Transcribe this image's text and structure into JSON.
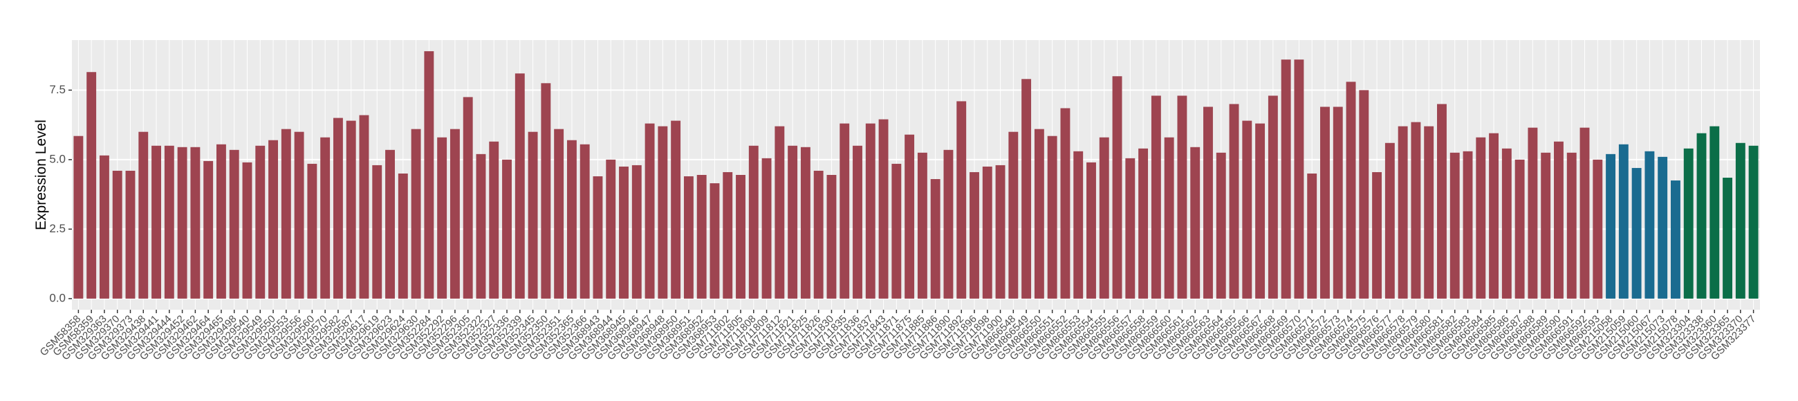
{
  "chart_data": {
    "type": "bar",
    "y_label": "Expression Level",
    "categories": [
      "GSM58358",
      "GSM58359",
      "GSM329363",
      "GSM329370",
      "GSM329373",
      "GSM329438",
      "GSM329441",
      "GSM329444",
      "GSM329452",
      "GSM329462",
      "GSM329464",
      "GSM329465",
      "GSM329498",
      "GSM329540",
      "GSM329549",
      "GSM329550",
      "GSM329553",
      "GSM329556",
      "GSM329560",
      "GSM329570",
      "GSM329582",
      "GSM329587",
      "GSM329617",
      "GSM329619",
      "GSM329623",
      "GSM329624",
      "GSM329630",
      "GSM352284",
      "GSM352292",
      "GSM352296",
      "GSM352305",
      "GSM352322",
      "GSM352327",
      "GSM352336",
      "GSM352339",
      "GSM352345",
      "GSM352350",
      "GSM352351",
      "GSM352365",
      "GSM352366",
      "GSM368943",
      "GSM368944",
      "GSM368945",
      "GSM368946",
      "GSM368947",
      "GSM368948",
      "GSM368950",
      "GSM368951",
      "GSM368952",
      "GSM368953",
      "GSM711802",
      "GSM711805",
      "GSM711808",
      "GSM711809",
      "GSM711812",
      "GSM711821",
      "GSM711825",
      "GSM711826",
      "GSM711830",
      "GSM711835",
      "GSM711836",
      "GSM711837",
      "GSM711843",
      "GSM711871",
      "GSM711875",
      "GSM711885",
      "GSM711886",
      "GSM711890",
      "GSM711892",
      "GSM711896",
      "GSM711898",
      "GSM711900",
      "GSM866548",
      "GSM866549",
      "GSM866550",
      "GSM866551",
      "GSM866552",
      "GSM866553",
      "GSM866554",
      "GSM866555",
      "GSM866556",
      "GSM866557",
      "GSM866558",
      "GSM866559",
      "GSM866560",
      "GSM866561",
      "GSM866562",
      "GSM866563",
      "GSM866564",
      "GSM866565",
      "GSM866566",
      "GSM866567",
      "GSM866568",
      "GSM866569",
      "GSM866570",
      "GSM866571",
      "GSM866572",
      "GSM866573",
      "GSM866574",
      "GSM866575",
      "GSM866576",
      "GSM866577",
      "GSM866578",
      "GSM866579",
      "GSM866580",
      "GSM866581",
      "GSM866582",
      "GSM866583",
      "GSM866584",
      "GSM866585",
      "GSM866586",
      "GSM866587",
      "GSM866588",
      "GSM866589",
      "GSM866590",
      "GSM866591",
      "GSM866592",
      "GSM866593",
      "GSM215058",
      "GSM215059",
      "GSM215060",
      "GSM215067",
      "GSM215073",
      "GSM215078",
      "GSM323304",
      "GSM323338",
      "GSM323360",
      "GSM323365",
      "GSM323370",
      "GSM323377"
    ],
    "values": [
      5.85,
      8.15,
      5.15,
      4.6,
      4.6,
      6.0,
      5.5,
      5.5,
      5.45,
      5.45,
      4.95,
      5.55,
      5.35,
      4.9,
      5.5,
      5.7,
      6.1,
      6.0,
      4.85,
      5.8,
      6.5,
      6.4,
      6.6,
      4.8,
      5.35,
      4.5,
      6.1,
      8.9,
      5.8,
      6.1,
      7.25,
      5.2,
      5.65,
      5.0,
      8.1,
      6.0,
      7.75,
      6.1,
      5.7,
      5.55,
      4.4,
      5.0,
      4.75,
      4.8,
      6.3,
      6.2,
      6.4,
      4.4,
      4.45,
      4.15,
      4.55,
      4.45,
      5.5,
      5.05,
      6.2,
      5.5,
      5.45,
      4.6,
      4.45,
      6.3,
      5.5,
      6.3,
      6.45,
      4.85,
      5.9,
      5.25,
      4.3,
      5.35,
      7.1,
      4.55,
      4.75,
      4.8,
      6.0,
      7.9,
      6.1,
      5.85,
      6.85,
      5.3,
      4.9,
      5.8,
      8.0,
      5.05,
      5.4,
      7.3,
      5.8,
      7.3,
      5.45,
      6.9,
      5.25,
      7.0,
      6.4,
      6.3,
      7.3,
      8.6,
      8.6,
      4.5,
      6.9,
      6.9,
      7.8,
      7.5,
      4.55,
      5.6,
      6.2,
      6.35,
      6.2,
      7.0,
      5.25,
      5.3,
      5.8,
      5.95,
      5.4,
      5.0,
      6.15,
      5.25,
      5.65,
      5.25,
      6.15,
      5.0,
      5.2,
      5.55,
      4.7,
      5.3,
      5.1,
      4.25,
      5.4,
      5.95,
      6.2,
      4.35,
      5.6,
      5.5
    ],
    "colors": [
      "#9e4450",
      "#9e4450",
      "#9e4450",
      "#9e4450",
      "#9e4450",
      "#9e4450",
      "#9e4450",
      "#9e4450",
      "#9e4450",
      "#9e4450",
      "#9e4450",
      "#9e4450",
      "#9e4450",
      "#9e4450",
      "#9e4450",
      "#9e4450",
      "#9e4450",
      "#9e4450",
      "#9e4450",
      "#9e4450",
      "#9e4450",
      "#9e4450",
      "#9e4450",
      "#9e4450",
      "#9e4450",
      "#9e4450",
      "#9e4450",
      "#9e4450",
      "#9e4450",
      "#9e4450",
      "#9e4450",
      "#9e4450",
      "#9e4450",
      "#9e4450",
      "#9e4450",
      "#9e4450",
      "#9e4450",
      "#9e4450",
      "#9e4450",
      "#9e4450",
      "#9e4450",
      "#9e4450",
      "#9e4450",
      "#9e4450",
      "#9e4450",
      "#9e4450",
      "#9e4450",
      "#9e4450",
      "#9e4450",
      "#9e4450",
      "#9e4450",
      "#9e4450",
      "#9e4450",
      "#9e4450",
      "#9e4450",
      "#9e4450",
      "#9e4450",
      "#9e4450",
      "#9e4450",
      "#9e4450",
      "#9e4450",
      "#9e4450",
      "#9e4450",
      "#9e4450",
      "#9e4450",
      "#9e4450",
      "#9e4450",
      "#9e4450",
      "#9e4450",
      "#9e4450",
      "#9e4450",
      "#9e4450",
      "#9e4450",
      "#9e4450",
      "#9e4450",
      "#9e4450",
      "#9e4450",
      "#9e4450",
      "#9e4450",
      "#9e4450",
      "#9e4450",
      "#9e4450",
      "#9e4450",
      "#9e4450",
      "#9e4450",
      "#9e4450",
      "#9e4450",
      "#9e4450",
      "#9e4450",
      "#9e4450",
      "#9e4450",
      "#9e4450",
      "#9e4450",
      "#9e4450",
      "#9e4450",
      "#9e4450",
      "#9e4450",
      "#9e4450",
      "#9e4450",
      "#9e4450",
      "#9e4450",
      "#9e4450",
      "#9e4450",
      "#9e4450",
      "#9e4450",
      "#9e4450",
      "#9e4450",
      "#9e4450",
      "#9e4450",
      "#9e4450",
      "#9e4450",
      "#9e4450",
      "#9e4450",
      "#9e4450",
      "#9e4450",
      "#9e4450",
      "#9e4450",
      "#9e4450",
      "#1a6b90",
      "#1a6b90",
      "#1a6b90",
      "#1a6b90",
      "#1a6b90",
      "#1a6b90",
      "#0b6e48",
      "#0b6e48",
      "#0b6e48",
      "#0b6e48",
      "#0b6e48",
      "#0b6e48"
    ],
    "ylim": [
      -0.4,
      9.3
    ],
    "yticks": [
      {
        "value": 0,
        "label": "0.0"
      },
      {
        "value": 2.5,
        "label": "2.5"
      },
      {
        "value": 5,
        "label": "5.0"
      },
      {
        "value": 7.5,
        "label": "7.5"
      }
    ],
    "grid": true
  }
}
